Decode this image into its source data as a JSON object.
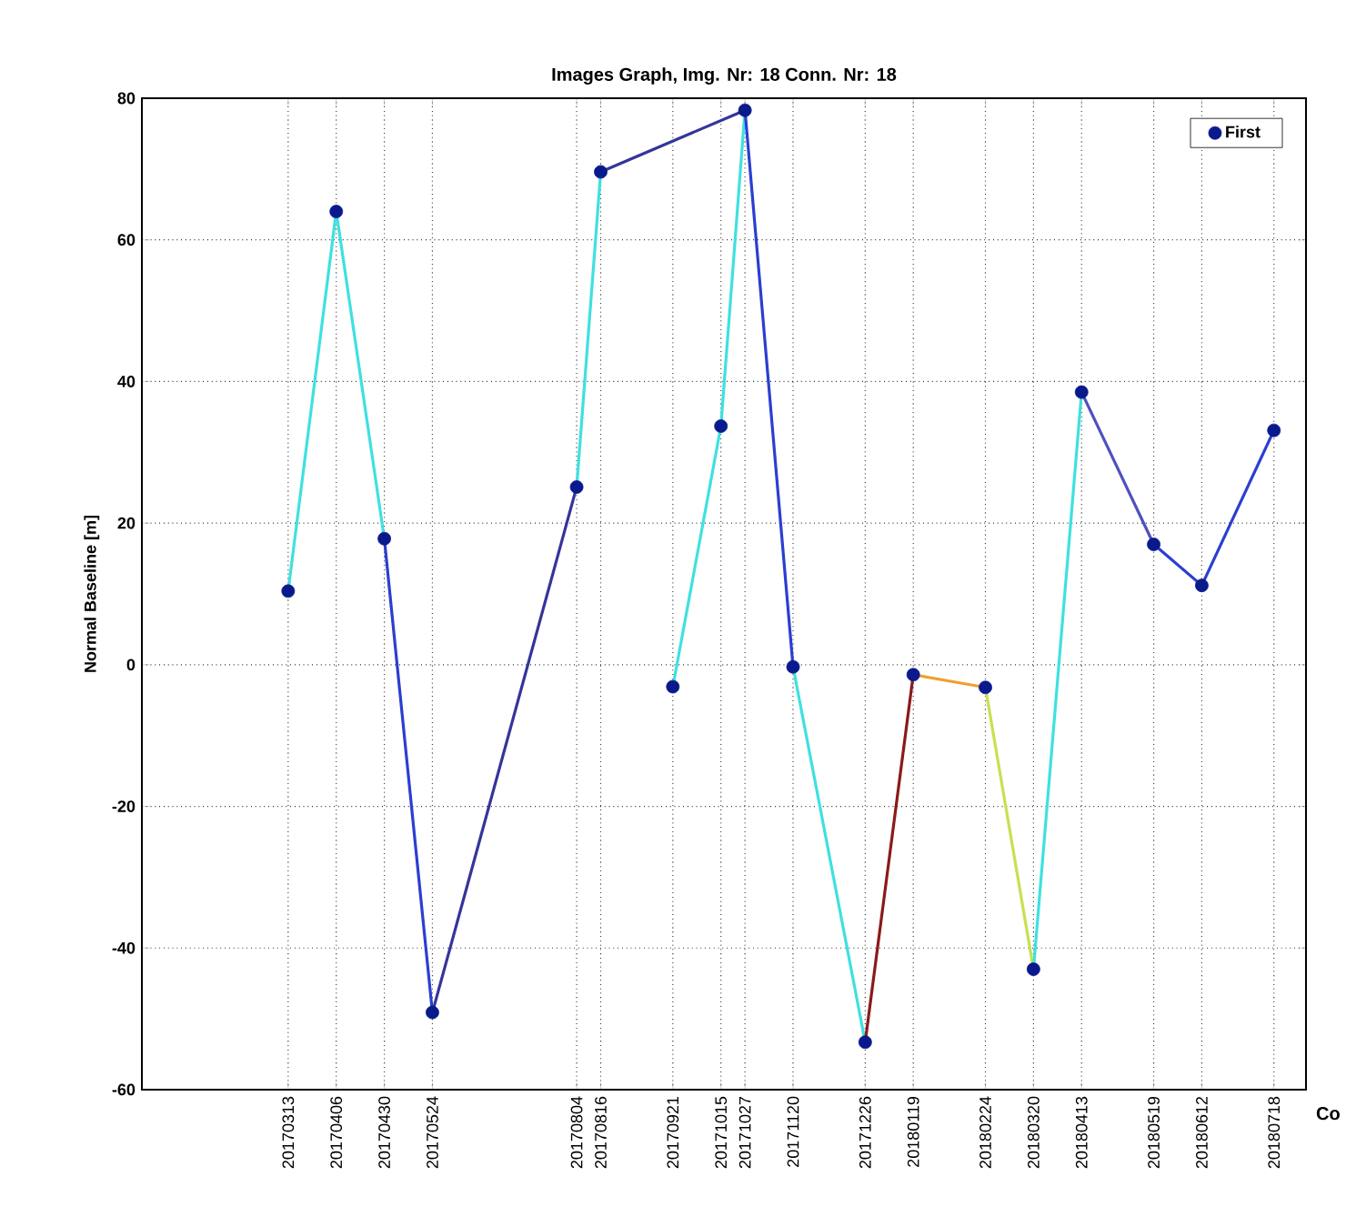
{
  "chart_data": {
    "type": "line",
    "title": "Images Graph, Img. Nr: 18 Conn. Nr: 18",
    "xlabel": "Co",
    "ylabel": "Normal Baseline [m]",
    "xlim": [
      "2016-12-30",
      "2018-08-03"
    ],
    "ylim": [
      -60,
      80
    ],
    "yticks": [
      -60,
      -40,
      -20,
      0,
      20,
      40,
      60,
      80
    ],
    "xticks": [
      {
        "value": "2017-03-13",
        "label": "20170313"
      },
      {
        "value": "2017-04-06",
        "label": "20170406"
      },
      {
        "value": "2017-04-30",
        "label": "20170430"
      },
      {
        "value": "2017-05-24",
        "label": "20170524"
      },
      {
        "value": "2017-08-04",
        "label": "20170804"
      },
      {
        "value": "2017-08-16",
        "label": "20170816"
      },
      {
        "value": "2017-09-21",
        "label": "20170921"
      },
      {
        "value": "2017-10-15",
        "label": "20171015"
      },
      {
        "value": "2017-10-27",
        "label": "20171027"
      },
      {
        "value": "2017-11-20",
        "label": "20171120"
      },
      {
        "value": "2017-12-26",
        "label": "20171226"
      },
      {
        "value": "2018-01-19",
        "label": "20180119"
      },
      {
        "value": "2018-02-24",
        "label": "20180224"
      },
      {
        "value": "2018-03-20",
        "label": "20180320"
      },
      {
        "value": "2018-04-13",
        "label": "20180413"
      },
      {
        "value": "2018-05-19",
        "label": "20180519"
      },
      {
        "value": "2018-06-12",
        "label": "20180612"
      },
      {
        "value": "2018-07-18",
        "label": "20180718"
      }
    ],
    "grid": true,
    "legend": "top right",
    "line_style": "solid",
    "series": [
      {
        "color": "#40e0e0",
        "x": [
          "2017-03-13",
          "2017-04-06"
        ],
        "values": [
          10.4,
          64
        ]
      },
      {
        "color": "#40e0e0",
        "x": [
          "2017-04-06",
          "2017-04-30"
        ],
        "values": [
          64,
          17.8
        ]
      },
      {
        "color": "#2a3fd0",
        "x": [
          "2017-04-30",
          "2017-05-24"
        ],
        "values": [
          17.8,
          -49.1
        ]
      },
      {
        "color": "#34359a",
        "x": [
          "2017-05-24",
          "2017-08-04"
        ],
        "values": [
          -49.1,
          25.1
        ]
      },
      {
        "color": "#40e0e0",
        "x": [
          "2017-08-04",
          "2017-08-16"
        ],
        "values": [
          25.1,
          69.6
        ]
      },
      {
        "color": "#34359a",
        "x": [
          "2017-08-16",
          "2017-10-27"
        ],
        "values": [
          69.6,
          78.3
        ]
      },
      {
        "color": "#40e0e0",
        "x": [
          "2017-09-21",
          "2017-10-15"
        ],
        "values": [
          -3.1,
          33.7
        ]
      },
      {
        "color": "#40e0e0",
        "x": [
          "2017-10-15",
          "2017-10-27"
        ],
        "values": [
          33.7,
          78.3
        ]
      },
      {
        "color": "#2a3fd0",
        "x": [
          "2017-10-27",
          "2017-11-20"
        ],
        "values": [
          78.3,
          -0.3
        ]
      },
      {
        "color": "#40e0e0",
        "x": [
          "2017-11-20",
          "2017-12-26"
        ],
        "values": [
          -0.3,
          -53.3
        ]
      },
      {
        "color": "#8b1a1a",
        "x": [
          "2017-12-26",
          "2018-01-19"
        ],
        "values": [
          -53.3,
          -1.4
        ]
      },
      {
        "color": "#f0a030",
        "x": [
          "2018-01-19",
          "2018-02-24"
        ],
        "values": [
          -1.4,
          -3.2
        ]
      },
      {
        "color": "#c8e050",
        "x": [
          "2018-02-24",
          "2018-03-20"
        ],
        "values": [
          -3.2,
          -43
        ]
      },
      {
        "color": "#40e0e0",
        "x": [
          "2018-03-20",
          "2018-04-13"
        ],
        "values": [
          -43,
          38.5
        ]
      },
      {
        "color": "#5050c0",
        "x": [
          "2018-04-13",
          "2018-05-19"
        ],
        "values": [
          38.5,
          17
        ]
      },
      {
        "color": "#2a3fd0",
        "x": [
          "2018-05-19",
          "2018-06-12"
        ],
        "values": [
          17,
          11.2
        ]
      },
      {
        "color": "#2a3fd0",
        "x": [
          "2018-06-12",
          "2018-07-18"
        ],
        "values": [
          11.2,
          33.1
        ]
      },
      {
        "type": "scatter",
        "name": "First",
        "color": "#0a1a8c",
        "marker": "circle",
        "x": [
          "2017-03-13",
          "2017-04-06",
          "2017-04-30",
          "2017-05-24",
          "2017-08-04",
          "2017-08-16",
          "2017-09-21",
          "2017-10-15",
          "2017-10-27",
          "2017-11-20",
          "2017-12-26",
          "2018-01-19",
          "2018-02-24",
          "2018-03-20",
          "2018-04-13",
          "2018-05-19",
          "2018-06-12",
          "2018-07-18"
        ],
        "values": [
          10.4,
          64,
          17.8,
          -49.1,
          25.1,
          69.6,
          -3.1,
          33.7,
          78.3,
          -0.3,
          -53.3,
          -1.4,
          -3.2,
          -43,
          38.5,
          17,
          11.2,
          33.1
        ]
      }
    ]
  }
}
